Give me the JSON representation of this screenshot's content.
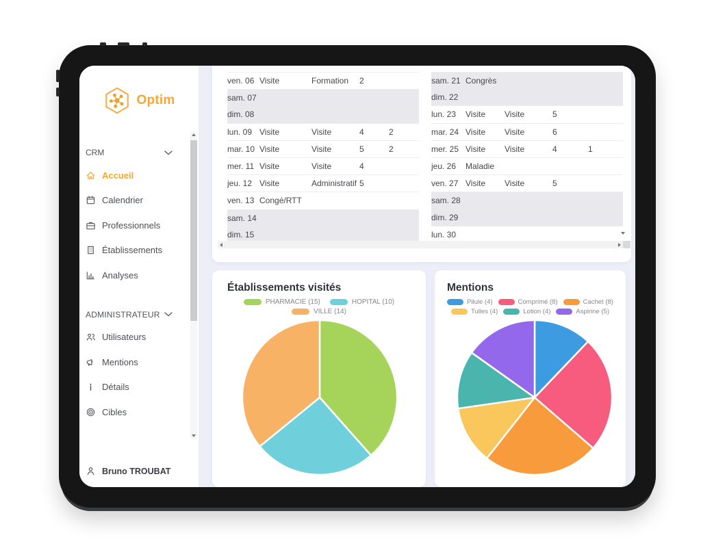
{
  "sidebar": {
    "logo": {
      "text": "Optim"
    },
    "sections": [
      {
        "label": "CRM",
        "items": [
          {
            "label": "Accueil",
            "icon": "home-icon",
            "active": true
          },
          {
            "label": "Calendrier",
            "icon": "calendar-icon",
            "active": false
          },
          {
            "label": "Professionnels",
            "icon": "briefcase-icon",
            "active": false
          },
          {
            "label": "Établissements",
            "icon": "building-icon",
            "active": false
          },
          {
            "label": "Analyses",
            "icon": "bar-chart-icon",
            "active": false
          }
        ]
      },
      {
        "label": "ADMINISTRATEUR",
        "items": [
          {
            "label": "Utilisateurs",
            "icon": "users-icon",
            "active": false
          },
          {
            "label": "Mentions",
            "icon": "megaphone-icon",
            "active": false
          },
          {
            "label": "Détails",
            "icon": "info-icon",
            "active": false
          },
          {
            "label": "Cibles",
            "icon": "target-icon",
            "active": false
          }
        ]
      }
    ],
    "user": {
      "name": "Bruno TROUBAT",
      "icon": "person-icon"
    }
  },
  "calendar": {
    "left_rows": [
      {
        "date": "ven. 06",
        "activity1": "Visite",
        "activity2": "Formation",
        "count1": "2",
        "count2": "",
        "weekend": false
      },
      {
        "date": "sam. 07",
        "activity1": "",
        "activity2": "",
        "count1": "",
        "count2": "",
        "weekend": true
      },
      {
        "date": "dim. 08",
        "activity1": "",
        "activity2": "",
        "count1": "",
        "count2": "",
        "weekend": true
      },
      {
        "date": "lun. 09",
        "activity1": "Visite",
        "activity2": "Visite",
        "count1": "4",
        "count2": "2",
        "weekend": false
      },
      {
        "date": "mar. 10",
        "activity1": "Visite",
        "activity2": "Visite",
        "count1": "5",
        "count2": "2",
        "weekend": false
      },
      {
        "date": "mer. 11",
        "activity1": "Visite",
        "activity2": "Visite",
        "count1": "4",
        "count2": "",
        "weekend": false
      },
      {
        "date": "jeu. 12",
        "activity1": "Visite",
        "activity2": "Administratif",
        "count1": "5",
        "count2": "",
        "weekend": false
      },
      {
        "date": "ven. 13",
        "activity1": "Congé/RTT",
        "activity2": "",
        "count1": "",
        "count2": "",
        "weekend": false
      },
      {
        "date": "sam. 14",
        "activity1": "",
        "activity2": "",
        "count1": "",
        "count2": "",
        "weekend": true
      },
      {
        "date": "dim. 15",
        "activity1": "",
        "activity2": "",
        "count1": "",
        "count2": "",
        "weekend": true
      }
    ],
    "right_rows": [
      {
        "date": "sam. 21",
        "activity1": "Congrès",
        "activity2": "",
        "count1": "",
        "count2": "",
        "weekend": true
      },
      {
        "date": "dim. 22",
        "activity1": "",
        "activity2": "",
        "count1": "",
        "count2": "",
        "weekend": true
      },
      {
        "date": "lun. 23",
        "activity1": "Visite",
        "activity2": "Visite",
        "count1": "5",
        "count2": "",
        "weekend": false
      },
      {
        "date": "mar. 24",
        "activity1": "Visite",
        "activity2": "Visite",
        "count1": "6",
        "count2": "",
        "weekend": false
      },
      {
        "date": "mer. 25",
        "activity1": "Visite",
        "activity2": "Visite",
        "count1": "4",
        "count2": "1",
        "weekend": false
      },
      {
        "date": "jeu. 26",
        "activity1": "Maladie",
        "activity2": "",
        "count1": "",
        "count2": "",
        "weekend": false
      },
      {
        "date": "ven. 27",
        "activity1": "Visite",
        "activity2": "Visite",
        "count1": "5",
        "count2": "",
        "weekend": false
      },
      {
        "date": "sam. 28",
        "activity1": "",
        "activity2": "",
        "count1": "",
        "count2": "",
        "weekend": true
      },
      {
        "date": "dim. 29",
        "activity1": "",
        "activity2": "",
        "count1": "",
        "count2": "",
        "weekend": true
      },
      {
        "date": "lun. 30",
        "activity1": "",
        "activity2": "",
        "count1": "",
        "count2": "",
        "weekend": false
      }
    ]
  },
  "chart_data": [
    {
      "type": "pie",
      "title": "Établissements visités",
      "legend_position": "top",
      "series": [
        {
          "name": "PHARMACIE",
          "value": 15,
          "color": "#a6d45a"
        },
        {
          "name": "HOPITAL",
          "value": 10,
          "color": "#6fd0dc"
        },
        {
          "name": "VILLE",
          "value": 14,
          "color": "#f8b266"
        }
      ]
    },
    {
      "type": "pie",
      "title": "Mentions",
      "legend_position": "top",
      "series": [
        {
          "name": "Pilule",
          "value": 4,
          "color": "#3d9ce1"
        },
        {
          "name": "Comprimé",
          "value": 8,
          "color": "#f75c7e"
        },
        {
          "name": "Cachet",
          "value": 8,
          "color": "#f79b3c"
        },
        {
          "name": "Tulles",
          "value": 4,
          "color": "#f9c75c"
        },
        {
          "name": "Lotion",
          "value": 4,
          "color": "#4ab5ac"
        },
        {
          "name": "Aspirine",
          "value": 5,
          "color": "#9468ea"
        }
      ]
    }
  ],
  "colors": {
    "accent_orange": "#f5a62b",
    "weekend_row": "#e9e9ed",
    "content_bg": "#edeff8"
  }
}
